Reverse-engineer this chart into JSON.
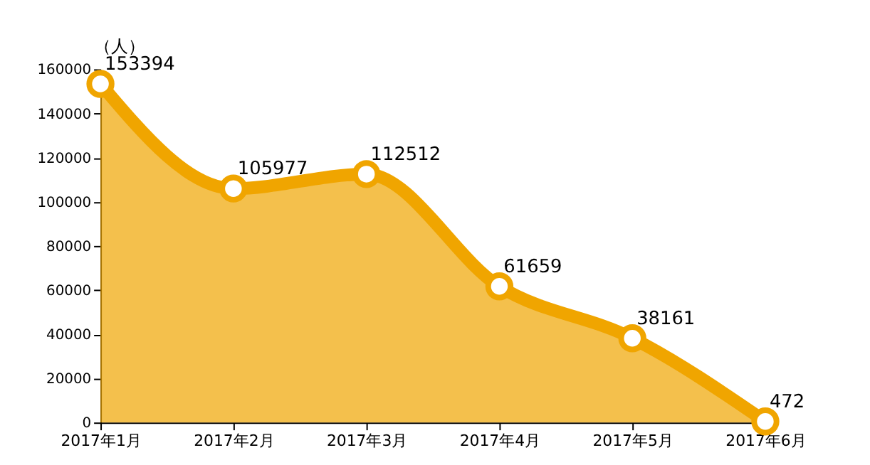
{
  "chart_data": {
    "type": "area",
    "ylabel": "（人）",
    "categories": [
      "2017年1月",
      "2017年2月",
      "2017年3月",
      "2017年4月",
      "2017年5月",
      "2017年6月"
    ],
    "series": [
      {
        "color": "#f0a500",
        "values": [
          153394,
          105977,
          112512,
          61659,
          38161,
          472
        ]
      }
    ],
    "ylim": [
      0,
      160000
    ],
    "yticks": [
      0,
      20000,
      40000,
      60000,
      80000,
      100000,
      120000,
      140000,
      160000
    ],
    "data_labels": true,
    "marker": "circle",
    "grid": false
  }
}
